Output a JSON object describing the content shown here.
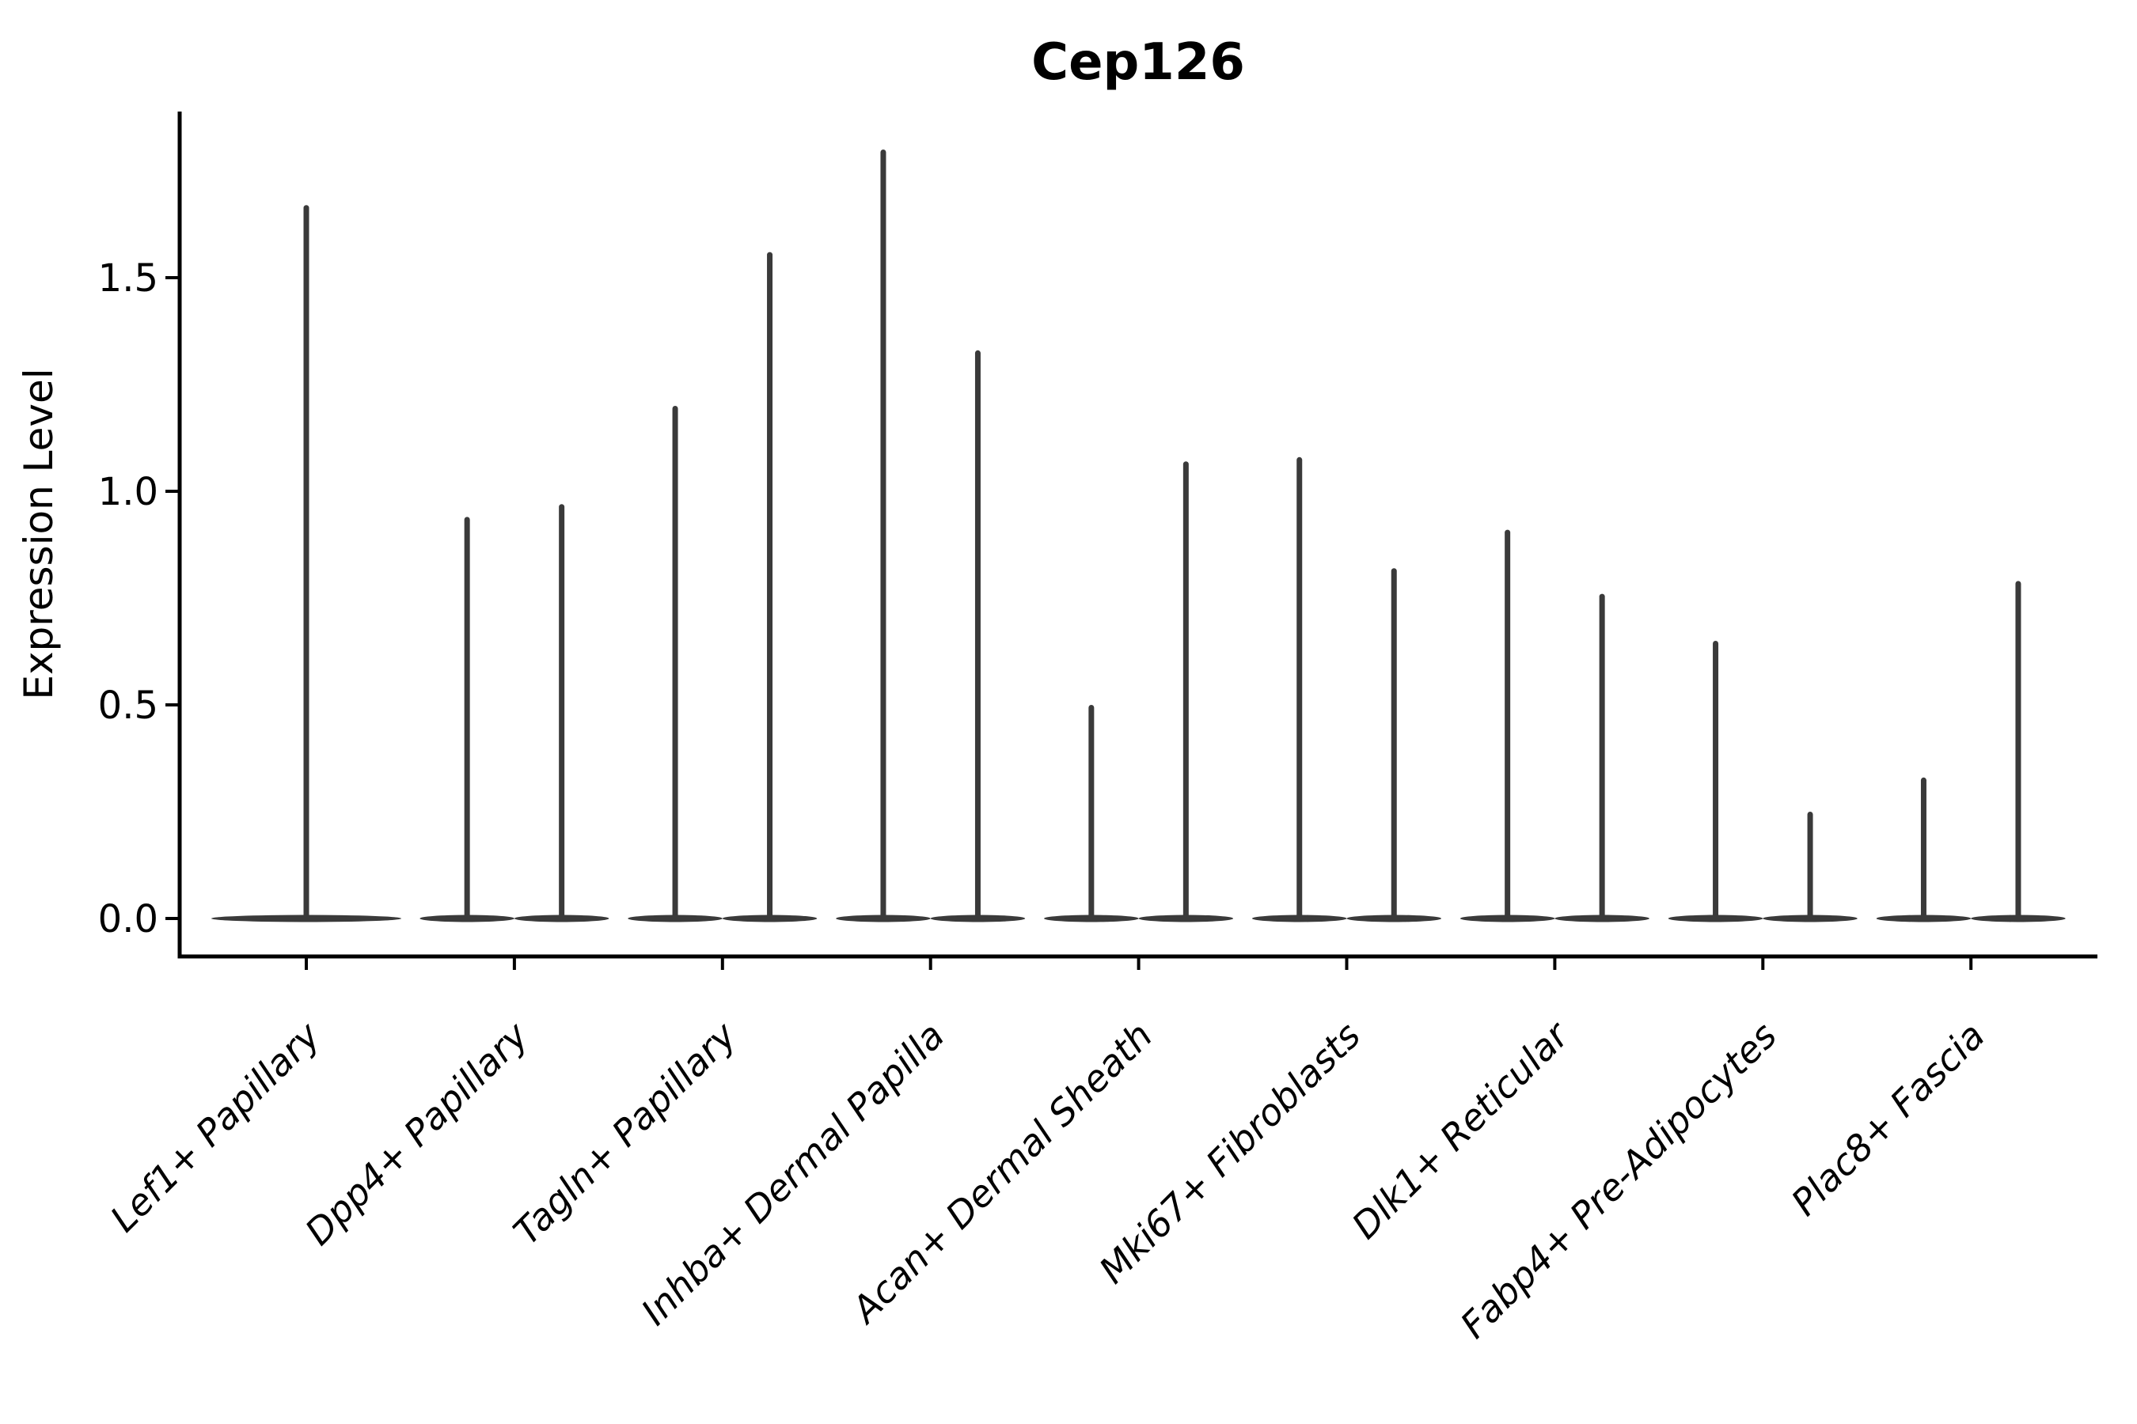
{
  "chart_data": {
    "type": "violin",
    "title": "Cep126",
    "ylabel": "Expression Level",
    "xlabel": "",
    "grid": false,
    "legend_position": "none",
    "axis_color": "#000000",
    "violin_color": "#3a3a3a",
    "ylim": [
      -0.09,
      1.89
    ],
    "ytick_values": [
      0.0,
      0.5,
      1.0,
      1.5
    ],
    "ytick_labels": [
      "0.0",
      "0.5",
      "1.0",
      "1.5"
    ],
    "categories": [
      "Lef1+ Papillary",
      "Dpp4+ Papillary",
      "Tagln+ Papillary",
      "Inhba+ Dermal Papilla",
      "Acan+ Dermal Sheath",
      "Mki67+ Fibroblasts",
      "Dlk1+ Reticular",
      "Fabp4+ Pre-Adipocytes",
      "Plac8+ Fascia"
    ],
    "series": [
      {
        "category": "Lef1+ Papillary",
        "violin_max_values": [
          1.67
        ]
      },
      {
        "category": "Dpp4+ Papillary",
        "violin_max_values": [
          0.94,
          0.97
        ]
      },
      {
        "category": "Tagln+ Papillary",
        "violin_max_values": [
          1.2,
          1.56
        ]
      },
      {
        "category": "Inhba+ Dermal Papilla",
        "violin_max_values": [
          1.8,
          1.33
        ]
      },
      {
        "category": "Acan+ Dermal Sheath",
        "violin_max_values": [
          0.5,
          1.07
        ]
      },
      {
        "category": "Mki67+ Fibroblasts",
        "violin_max_values": [
          1.08,
          0.82
        ]
      },
      {
        "category": "Dlk1+ Reticular",
        "violin_max_values": [
          0.91,
          0.76
        ]
      },
      {
        "category": "Fabp4+ Pre-Adipocytes",
        "violin_max_values": [
          0.65,
          0.25
        ]
      },
      {
        "category": "Plac8+ Fascia",
        "violin_max_values": [
          0.33,
          0.79
        ]
      }
    ],
    "violin_baseline_value": 0.0
  }
}
